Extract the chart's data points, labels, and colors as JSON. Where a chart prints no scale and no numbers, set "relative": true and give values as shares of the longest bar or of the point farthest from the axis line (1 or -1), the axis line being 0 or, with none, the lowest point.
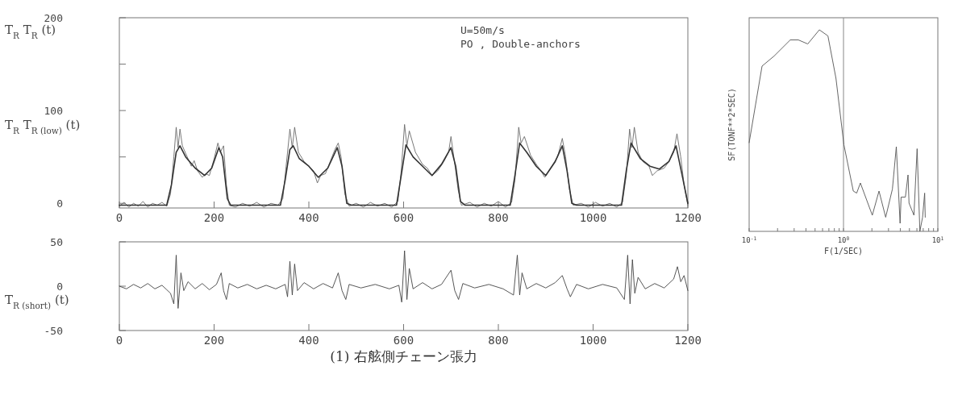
{
  "chart_data": [
    {
      "type": "line",
      "ylabel": "T$_{R}$ T$_{R}$ (t)\nT$_{R}$ T$_{R (low)}$ (t)",
      "annotations": [
        "U=50m/s",
        "PO , Double-anchors"
      ],
      "xlim": [
        0,
        1200
      ],
      "xticks": [
        0,
        200,
        400,
        600,
        800,
        1000,
        1200
      ],
      "ylim": [
        -5,
        200
      ],
      "yticks": [
        0,
        {
          "value": 50,
          "label": null
        },
        100,
        {
          "value": 150,
          "label": null
        },
        200
      ],
      "series": [
        {
          "color": "#6a6a6a",
          "x": [
            0,
            10,
            20,
            30,
            40,
            50,
            60,
            70,
            80,
            90,
            100,
            108,
            115,
            120,
            124,
            128,
            133,
            145,
            152,
            158,
            165,
            175,
            182,
            190,
            200,
            208,
            213,
            220,
            226,
            232,
            245,
            260,
            275,
            290,
            305,
            320,
            335,
            345,
            352,
            360,
            365,
            370,
            378,
            390,
            400,
            410,
            418,
            425,
            435,
            445,
            455,
            462,
            468,
            476,
            485,
            500,
            515,
            530,
            545,
            560,
            575,
            588,
            595,
            602,
            607,
            612,
            625,
            640,
            650,
            660,
            672,
            685,
            695,
            700,
            706,
            715,
            722,
            740,
            755,
            770,
            785,
            800,
            815,
            828,
            835,
            843,
            848,
            855,
            868,
            880,
            890,
            898,
            910,
            925,
            935,
            942,
            950,
            958,
            975,
            990,
            1005,
            1020,
            1035,
            1050,
            1062,
            1070,
            1077,
            1082,
            1087,
            1095,
            1105,
            1118,
            1125,
            1135,
            1150,
            1160,
            1170,
            1177,
            1185,
            1192,
            1200
          ],
          "values": [
            -3,
            1,
            -4,
            0,
            -3,
            2,
            -4,
            0,
            -2,
            1,
            -3,
            10,
            50,
            82,
            60,
            80,
            62,
            48,
            40,
            46,
            35,
            28,
            32,
            30,
            48,
            65,
            55,
            62,
            20,
            -2,
            -4,
            0,
            -3,
            1,
            -4,
            0,
            -2,
            5,
            40,
            80,
            60,
            82,
            55,
            45,
            40,
            35,
            22,
            30,
            32,
            45,
            58,
            65,
            50,
            10,
            -3,
            0,
            -4,
            1,
            -3,
            0,
            -4,
            2,
            35,
            85,
            62,
            78,
            55,
            42,
            38,
            30,
            35,
            45,
            55,
            72,
            50,
            15,
            -2,
            1,
            -4,
            0,
            -3,
            2,
            -4,
            1,
            25,
            82,
            65,
            72,
            52,
            42,
            35,
            28,
            38,
            50,
            70,
            50,
            15,
            -2,
            0,
            -4,
            1,
            -3,
            0,
            -4,
            1,
            30,
            80,
            60,
            82,
            55,
            45,
            40,
            30,
            35,
            38,
            45,
            55,
            75,
            50,
            20,
            -2
          ]
        },
        {
          "color": "#333333",
          "x": [
            0,
            100,
            110,
            120,
            128,
            140,
            160,
            180,
            195,
            210,
            218,
            228,
            235,
            340,
            350,
            360,
            367,
            380,
            400,
            420,
            440,
            460,
            470,
            480,
            490,
            585,
            595,
            605,
            620,
            640,
            660,
            680,
            700,
            710,
            720,
            730,
            825,
            835,
            845,
            860,
            880,
            900,
            920,
            935,
            945,
            955,
            965,
            1060,
            1070,
            1080,
            1100,
            1120,
            1140,
            1160,
            1175,
            1188,
            1200
          ],
          "values": [
            -2,
            -2,
            20,
            55,
            62,
            50,
            38,
            30,
            38,
            60,
            50,
            5,
            -2,
            -2,
            25,
            58,
            62,
            48,
            40,
            28,
            38,
            60,
            40,
            0,
            -2,
            -2,
            30,
            63,
            50,
            40,
            30,
            42,
            60,
            40,
            2,
            -2,
            -2,
            30,
            65,
            55,
            40,
            30,
            45,
            62,
            35,
            0,
            -2,
            -2,
            35,
            65,
            48,
            40,
            37,
            45,
            62,
            30,
            0
          ]
        }
      ]
    },
    {
      "type": "line",
      "ylabel": "T$_{R (short)}$ (t)",
      "annotations": [
        "(1) 右舷側チェーン張力"
      ],
      "xlim": [
        0,
        1200
      ],
      "xticks": [
        0,
        200,
        400,
        600,
        800,
        1000,
        1200
      ],
      "ylim": [
        -50,
        50
      ],
      "yticks": [
        -50,
        0,
        50
      ],
      "series": [
        {
          "color": "#444444",
          "x": [
            0,
            15,
            30,
            45,
            60,
            75,
            90,
            100,
            108,
            115,
            120,
            124,
            130,
            136,
            145,
            160,
            175,
            190,
            205,
            215,
            220,
            226,
            232,
            250,
            270,
            290,
            310,
            330,
            350,
            355,
            360,
            365,
            370,
            376,
            390,
            410,
            430,
            450,
            462,
            470,
            478,
            485,
            510,
            540,
            570,
            590,
            596,
            602,
            607,
            612,
            620,
            640,
            660,
            680,
            700,
            708,
            716,
            725,
            750,
            780,
            810,
            832,
            840,
            845,
            850,
            860,
            880,
            900,
            920,
            935,
            945,
            952,
            965,
            990,
            1020,
            1050,
            1066,
            1073,
            1078,
            1083,
            1088,
            1095,
            1110,
            1130,
            1150,
            1170,
            1178,
            1185,
            1192,
            1200
          ],
          "values": [
            0,
            -3,
            2,
            -2,
            3,
            -3,
            1,
            -4,
            -8,
            -20,
            35,
            -25,
            15,
            -5,
            5,
            -3,
            3,
            -4,
            2,
            15,
            -5,
            -15,
            3,
            -2,
            2,
            -3,
            1,
            -3,
            2,
            -12,
            28,
            -10,
            25,
            -5,
            4,
            -3,
            3,
            -2,
            15,
            -5,
            -15,
            2,
            -2,
            2,
            -3,
            1,
            -18,
            40,
            -15,
            20,
            -3,
            4,
            -3,
            2,
            18,
            -5,
            -15,
            3,
            -2,
            2,
            -3,
            -10,
            35,
            -10,
            15,
            -3,
            3,
            -2,
            4,
            12,
            -3,
            -12,
            2,
            -3,
            2,
            -2,
            -15,
            35,
            -20,
            30,
            -8,
            10,
            -3,
            3,
            -2,
            8,
            22,
            5,
            12,
            -5
          ]
        }
      ]
    },
    {
      "type": "line",
      "relative": true,
      "log": "x",
      "tick_labels": "x",
      "xlabel": "F(1/SEC)",
      "ylabel": "SF(TONF**2*SEC)",
      "xlim": [
        0.1,
        10
      ],
      "xticks": [
        {
          "value": 0.1,
          "label": "10$^{-1}$"
        },
        {
          "value": 0.2,
          "label": null
        },
        {
          "value": 0.3,
          "label": null
        },
        {
          "value": 0.4,
          "label": null
        },
        {
          "value": 0.5,
          "label": null
        },
        {
          "value": 0.6,
          "label": null
        },
        {
          "value": 0.7,
          "label": null
        },
        {
          "value": 0.8,
          "label": null
        },
        {
          "value": 0.9,
          "label": null
        },
        {
          "value": 1,
          "label": "10$^{0}$"
        },
        {
          "value": 2,
          "label": null
        },
        {
          "value": 3,
          "label": null
        },
        {
          "value": 4,
          "label": null
        },
        {
          "value": 5,
          "label": null
        },
        {
          "value": 6,
          "label": null
        },
        {
          "value": 7,
          "label": null
        },
        {
          "value": 8,
          "label": null
        },
        {
          "value": 9,
          "label": null
        },
        {
          "value": 10,
          "label": "10$^{1}$"
        }
      ],
      "ref_lines": [
        {
          "axis": "x",
          "value": 1,
          "label": null,
          "color": "#888888"
        }
      ],
      "series": [
        {
          "color": "#555555",
          "x": [
            0.1,
            0.137,
            0.184,
            0.273,
            0.332,
            0.418,
            0.555,
            0.684,
            0.832,
            1.01,
            1.27,
            1.38,
            1.51,
            2.02,
            2.38,
            2.8,
            3.3,
            3.63,
            3.98,
            4.08,
            4.53,
            4.83,
            4.95,
            5.58,
            6.03,
            6.45,
            6.89,
            7.25,
            7.35
          ],
          "values": [
            0.44,
            0.82,
            0.87,
            0.95,
            0.95,
            0.93,
            1,
            0.97,
            0.76,
            0.43,
            0.2,
            0.19,
            0.24,
            0.08,
            0.2,
            0.07,
            0.21,
            0.42,
            0.04,
            0.17,
            0.17,
            0.28,
            0.14,
            0.08,
            0.41,
            0,
            0.07,
            0.19,
            0.07
          ]
        }
      ]
    }
  ]
}
